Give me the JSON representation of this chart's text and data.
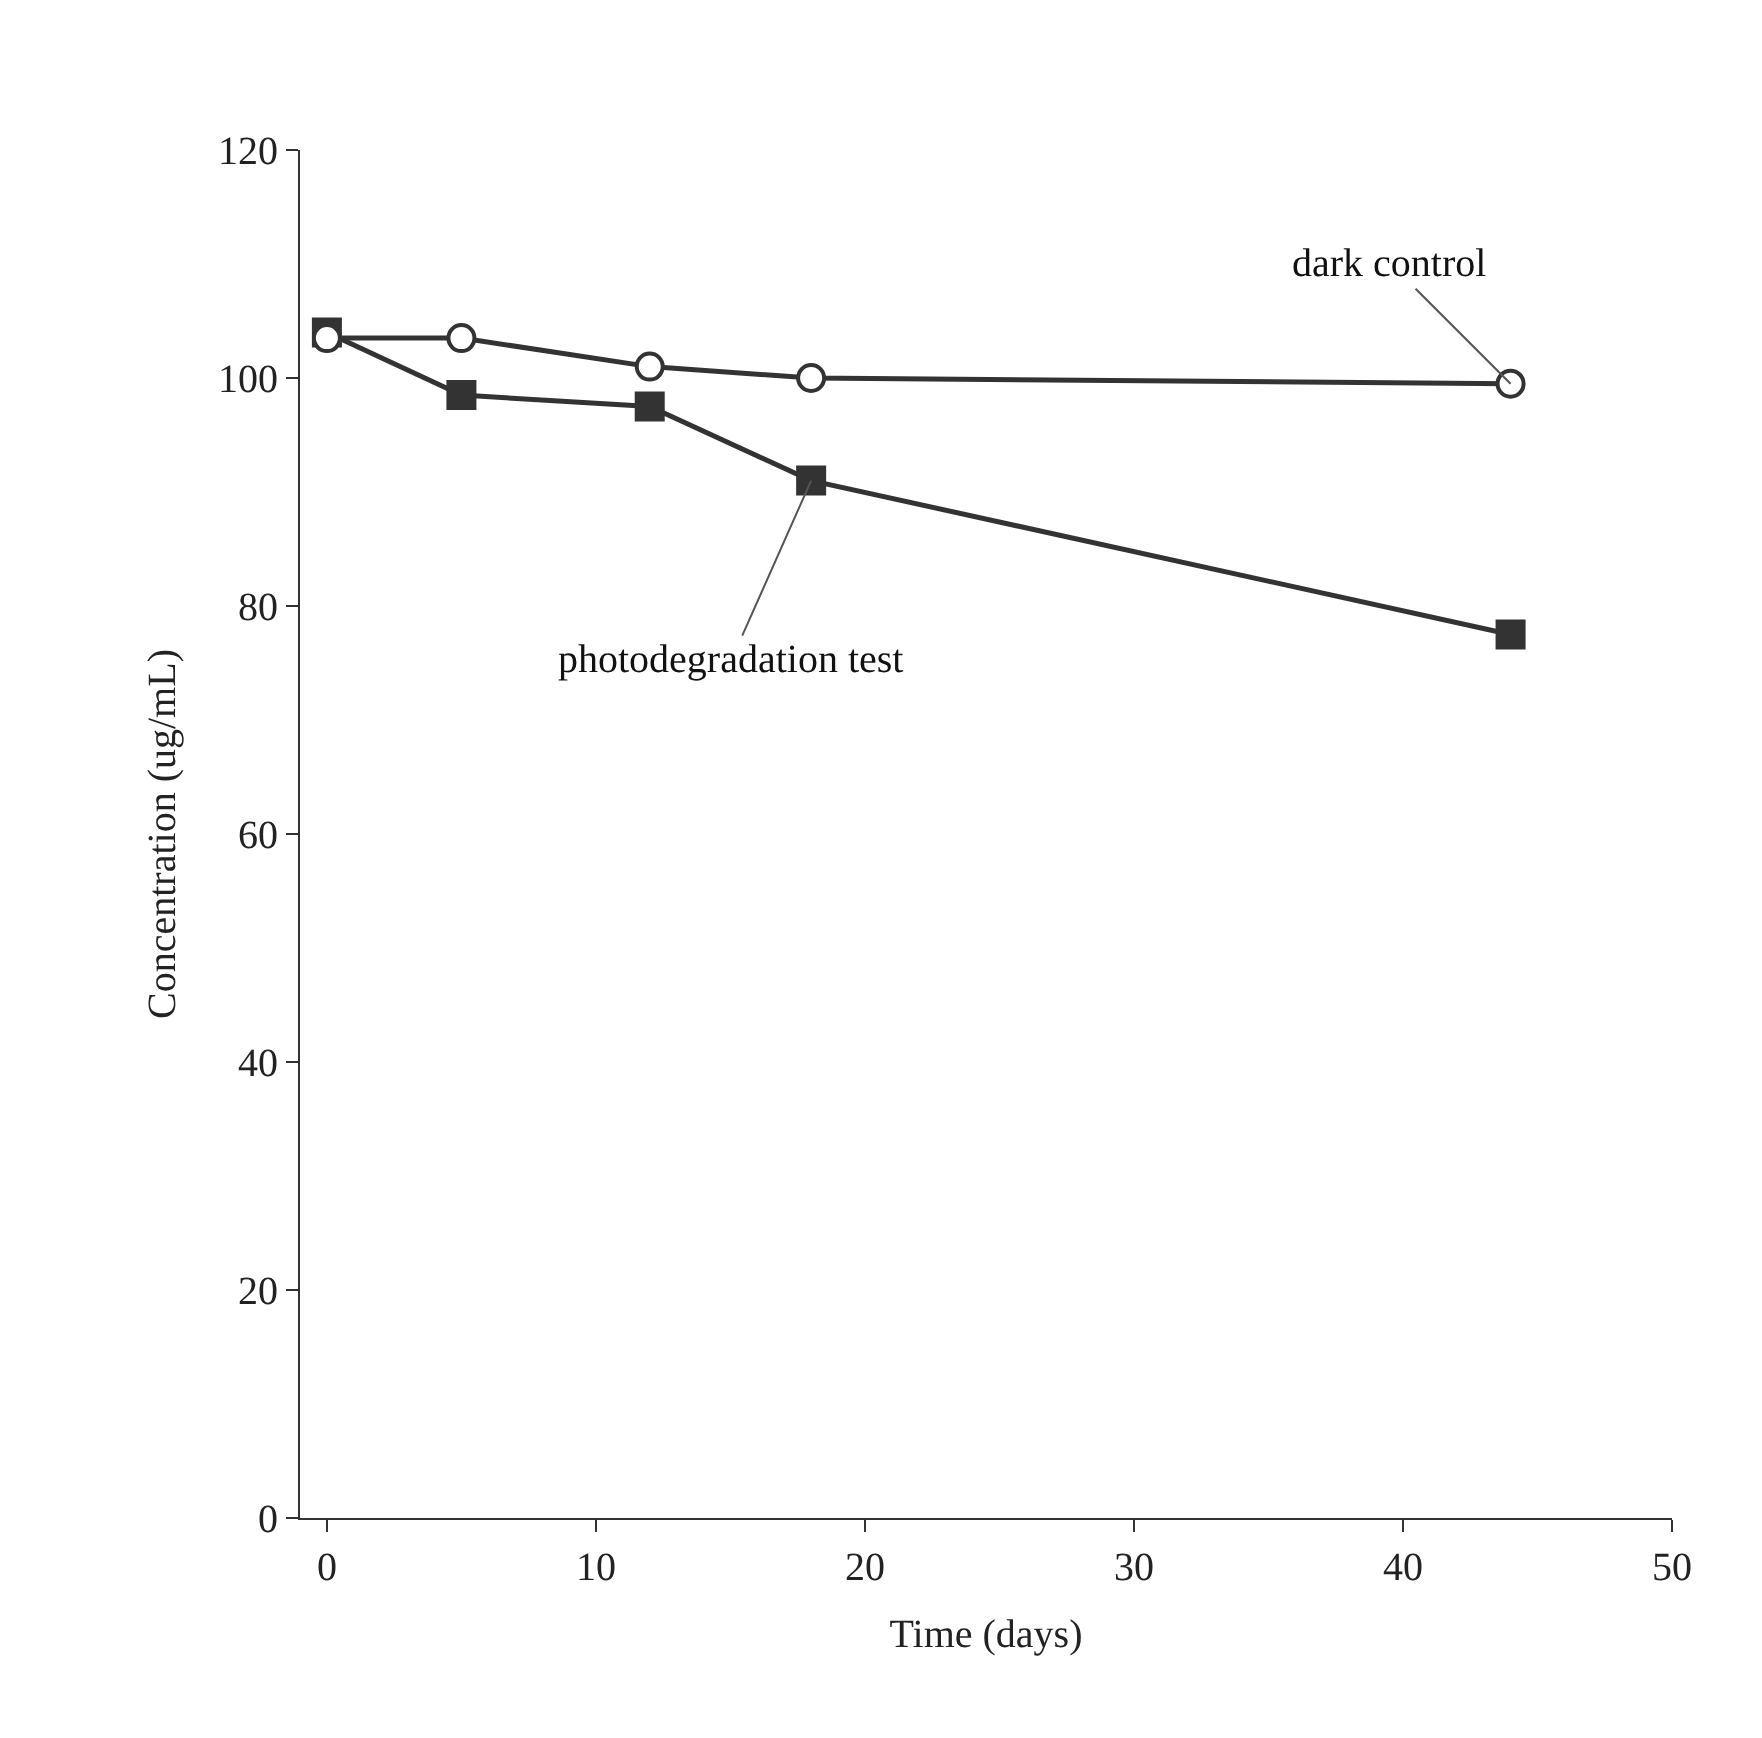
{
  "chart_data": {
    "type": "line",
    "xlabel": "Time (days)",
    "ylabel": "Concentration (ug/mL)",
    "x": [
      0,
      5,
      12,
      18,
      44
    ],
    "series": [
      {
        "color": "#333333",
        "marker": "circle",
        "values": [
          103.5,
          103.5,
          101,
          100,
          99.5
        ]
      },
      {
        "color": "#333333",
        "marker": "square",
        "values": [
          104,
          98.5,
          97.5,
          91,
          77.5
        ]
      }
    ],
    "xlim": [
      -1,
      50
    ],
    "xticks": [
      0,
      10,
      20,
      30,
      40,
      50
    ],
    "ylim": [
      0,
      120
    ],
    "yticks": [
      0,
      20,
      40,
      60,
      80,
      100,
      120
    ],
    "legend": false,
    "line_style": "solid",
    "annotations": [
      {
        "text": "dark control",
        "x": 44,
        "y": 99.5
      },
      {
        "text": "photodegradation test",
        "x": 18,
        "y": 91
      }
    ]
  }
}
